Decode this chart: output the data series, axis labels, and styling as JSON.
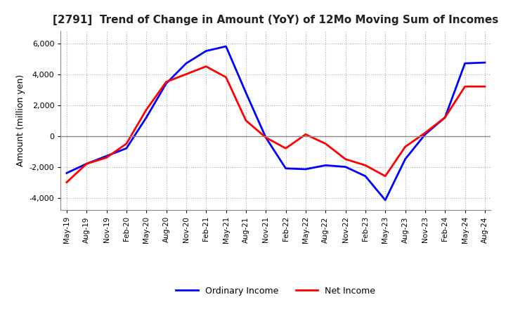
{
  "title": "[2791]  Trend of Change in Amount (YoY) of 12Mo Moving Sum of Incomes",
  "ylabel": "Amount (million yen)",
  "ylim": [
    -4800,
    6800
  ],
  "yticks": [
    -4000,
    -2000,
    0,
    2000,
    4000,
    6000
  ],
  "background_color": "#ffffff",
  "grid_color": "#aaaaaa",
  "ordinary_income_color": "#0000ff",
  "net_income_color": "#ff0000",
  "x_labels": [
    "May-19",
    "Aug-19",
    "Nov-19",
    "Feb-20",
    "May-20",
    "Aug-20",
    "Nov-20",
    "Feb-21",
    "May-21",
    "Aug-21",
    "Nov-21",
    "Feb-22",
    "May-22",
    "Aug-22",
    "Nov-22",
    "Feb-23",
    "May-23",
    "Aug-23",
    "Nov-23",
    "Feb-24",
    "May-24",
    "Aug-24"
  ],
  "ordinary_income": [
    -2400,
    -1800,
    -1300,
    -800,
    1200,
    3400,
    4700,
    5500,
    5800,
    2800,
    -100,
    -2100,
    -2150,
    -1900,
    -2000,
    -2600,
    -4150,
    -1500,
    100,
    1200,
    4700,
    4750
  ],
  "net_income": [
    -3000,
    -1800,
    -1400,
    -500,
    1700,
    3500,
    4000,
    4500,
    3800,
    1000,
    -100,
    -800,
    100,
    -500,
    -1500,
    -1900,
    -2600,
    -700,
    200,
    1200,
    3200,
    3200
  ]
}
